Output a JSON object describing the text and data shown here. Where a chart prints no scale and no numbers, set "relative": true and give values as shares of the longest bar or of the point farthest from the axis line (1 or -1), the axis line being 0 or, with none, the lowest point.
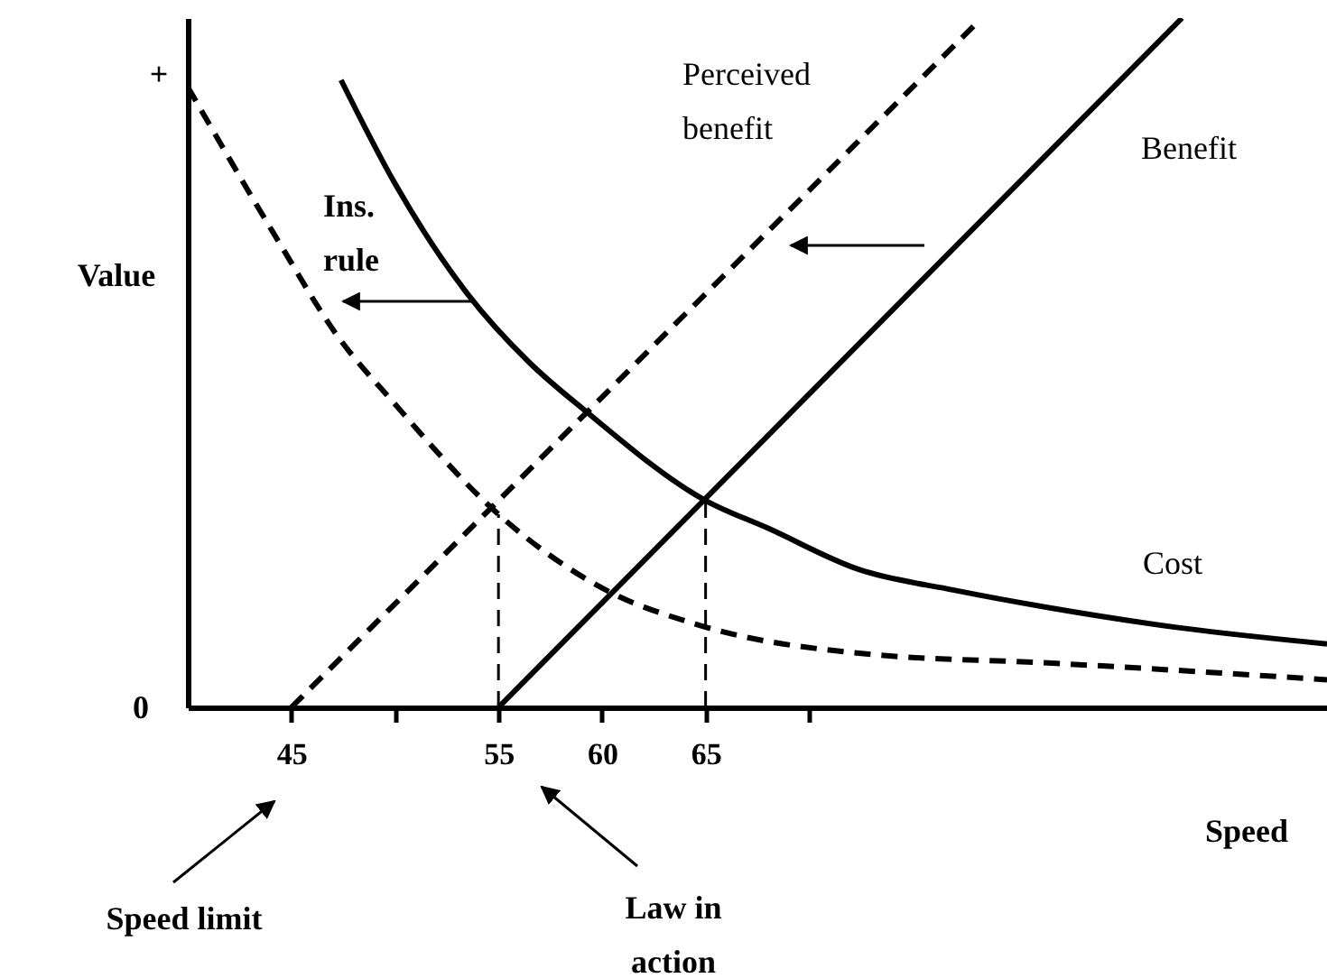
{
  "chart_data": {
    "type": "line",
    "relative": true,
    "xlabel": "Speed",
    "ylabel": "Value",
    "xlim": [
      40,
      95
    ],
    "xticks": [
      45,
      {
        "value": 50,
        "label": null
      },
      55,
      60,
      65,
      {
        "value": 70,
        "label": null
      }
    ],
    "series": [
      {
        "name": "Cost",
        "color": "#000000",
        "line_style": "solid",
        "x": [
          47.4,
          50,
          53.5,
          56.5,
          59.2,
          65,
          68,
          72.4,
          77,
          81.5,
          88,
          95
        ],
        "values": [
          0.91,
          0.76,
          0.6,
          0.5,
          0.43,
          0.3,
          0.26,
          0.2,
          0.17,
          0.145,
          0.115,
          0.092
        ]
      },
      {
        "color": "#000000",
        "line_style": "dashed",
        "x": [
          40,
          44.3,
          47.2,
          50,
          55,
          60.2,
          64.6,
          73.3,
          81.1,
          95
        ],
        "values": [
          0.9,
          0.68,
          0.54,
          0.44,
          0.28,
          0.17,
          0.12,
          0.076,
          0.065,
          0.04
        ]
      },
      {
        "name": "Perceived benefit",
        "color": "#000000",
        "line_style": "dashed",
        "x": [
          45,
          78
        ],
        "values": [
          0,
          0.99
        ]
      },
      {
        "name": "Benefit",
        "color": "#000000",
        "line_style": "solid",
        "x": [
          55,
          88
        ],
        "values": [
          0,
          1
        ]
      },
      {
        "color": "#000000",
        "line_style": "dashed",
        "x": [
          55,
          55
        ],
        "values": [
          0,
          0.28
        ]
      },
      {
        "color": "#000000",
        "line_style": "dashed",
        "x": [
          65,
          65
        ],
        "values": [
          0,
          0.3
        ]
      }
    ],
    "annotations": [
      "+",
      "0",
      "Speed limit",
      "Law in action",
      "Ins. rule"
    ]
  }
}
